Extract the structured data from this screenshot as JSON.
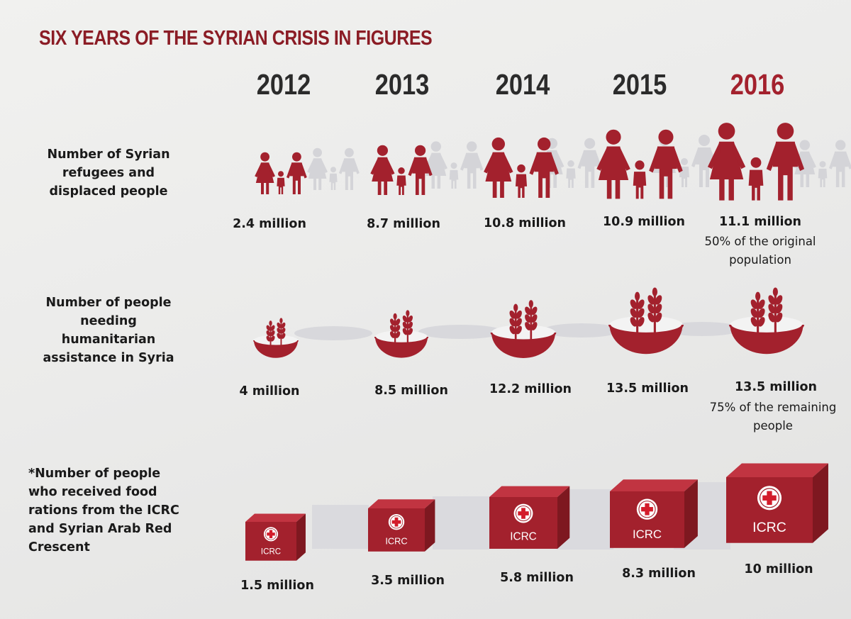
{
  "title": "SIX YEARS OF THE SYRIAN CRISIS IN FIGURES",
  "colors": {
    "accent": "#a3212d",
    "title": "#8b1c25",
    "ghost": "#d4d4d8",
    "text": "#1a1a1a"
  },
  "years": [
    "2012",
    "2013",
    "2014",
    "2015",
    "2016"
  ],
  "rows": [
    {
      "label": "Number of Syrian refugees and displaced people",
      "icon": "family-icon",
      "values": [
        "2.4 million",
        "8.7 million",
        "10.8 million",
        "10.9 million",
        "11.1 million"
      ],
      "note": "50% of the original population"
    },
    {
      "label": "Number of people needing humanitarian assistance in Syria",
      "icon": "wheat-bowl-icon",
      "values": [
        "4 million",
        "8.5 million",
        "12.2 million",
        "13.5 million",
        "13.5 million"
      ],
      "note": "75% of the remaining people"
    },
    {
      "label": "*Number of people who received food rations from the ICRC and Syrian Arab Red Crescent",
      "icon": "icrc-box-icon",
      "box_text": "ICRC",
      "values": [
        "1.5 million",
        "3.5 million",
        "5.8 million",
        "8.3 million",
        "10 million"
      ]
    }
  ],
  "chart_data": {
    "type": "table",
    "title": "SIX YEARS OF THE SYRIAN CRISIS IN FIGURES",
    "categories": [
      "2012",
      "2013",
      "2014",
      "2015",
      "2016"
    ],
    "units": "million",
    "series": [
      {
        "name": "Number of Syrian refugees and displaced people",
        "values": [
          2.4,
          8.7,
          10.8,
          10.9,
          11.1
        ]
      },
      {
        "name": "Number of people needing humanitarian assistance in Syria",
        "values": [
          4,
          8.5,
          12.2,
          13.5,
          13.5
        ]
      },
      {
        "name": "*Number of people who received food rations from the ICRC and Syrian Arab Red Crescent",
        "values": [
          1.5,
          3.5,
          5.8,
          8.3,
          10
        ]
      }
    ],
    "annotations": [
      "50% of the original population",
      "75% of the remaining people"
    ]
  }
}
